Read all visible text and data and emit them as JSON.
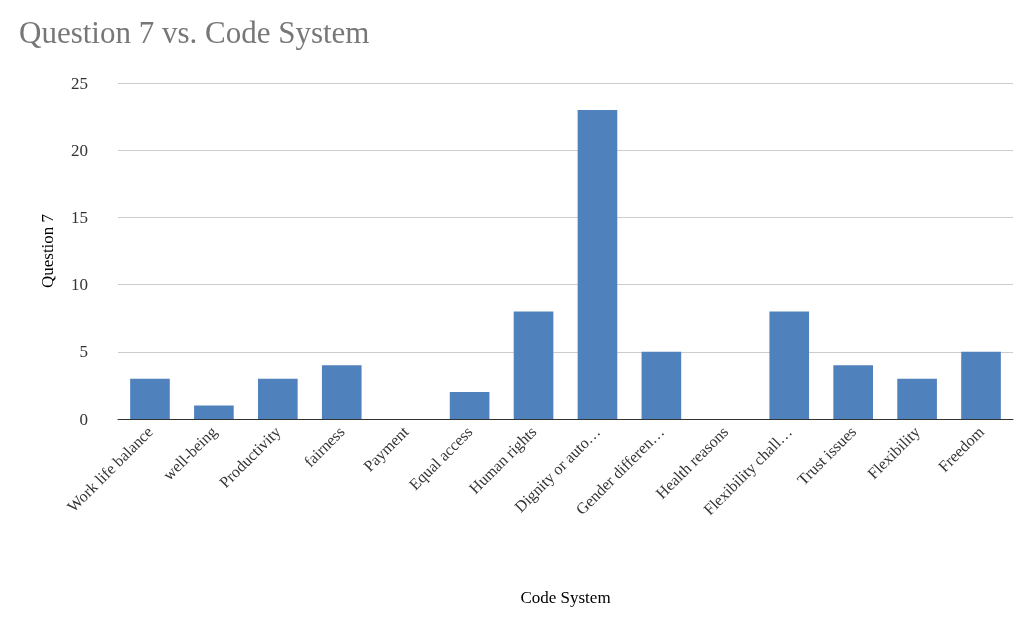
{
  "chart_data": {
    "type": "bar",
    "title": "Question 7 vs. Code System",
    "xlabel": "Code System",
    "ylabel": "Question 7",
    "categories": [
      "Work life balance",
      "well-being",
      "Productivity",
      "fairness",
      "Payment",
      "Equal access",
      "Human rights",
      "Dignity or auto…",
      "Gender differen…",
      "Health reasons",
      "Flexibility chall…",
      "Trust issues",
      "Flexibility",
      "Freedom"
    ],
    "values": [
      3,
      1,
      3,
      4,
      0,
      2,
      8,
      23,
      5,
      0,
      8,
      4,
      3,
      5
    ],
    "color": "#4f81bd",
    "ylim": [
      0,
      25
    ],
    "yticks": [
      0,
      5,
      10,
      15,
      20,
      25
    ],
    "grid": "y"
  }
}
